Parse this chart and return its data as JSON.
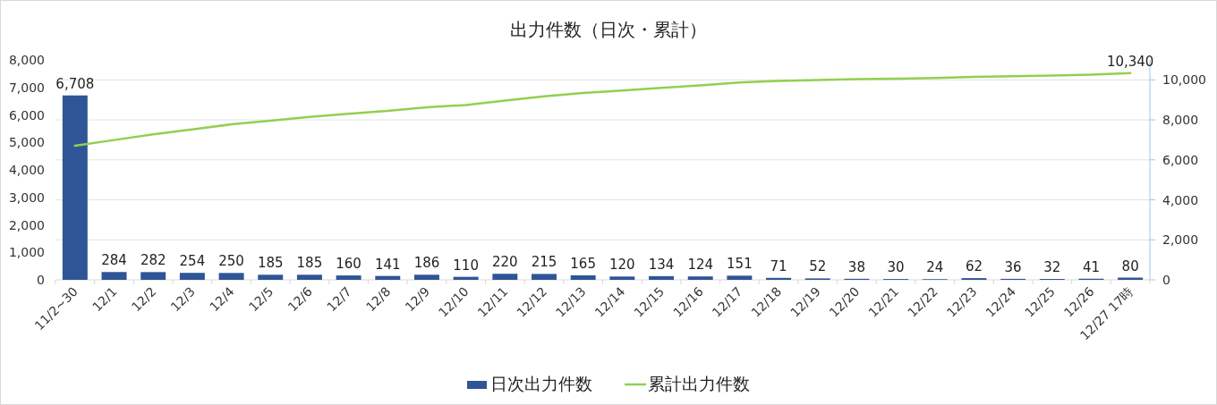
{
  "chart_data": {
    "type": "bar",
    "title": "出力件数（日次・累計）",
    "categories": [
      "11/2~30",
      "12/1",
      "12/2",
      "12/3",
      "12/4",
      "12/5",
      "12/6",
      "12/7",
      "12/8",
      "12/9",
      "12/10",
      "12/11",
      "12/12",
      "12/13",
      "12/14",
      "12/15",
      "12/16",
      "12/17",
      "12/18",
      "12/19",
      "12/20",
      "12/21",
      "12/22",
      "12/23",
      "12/24",
      "12/25",
      "12/26",
      "12/27 17時"
    ],
    "series": [
      {
        "name": "日次出力件数",
        "color": "#2f5597",
        "values": [
          6708,
          284,
          282,
          254,
          250,
          185,
          185,
          160,
          141,
          186,
          110,
          220,
          215,
          165,
          120,
          134,
          124,
          151,
          71,
          52,
          38,
          30,
          24,
          62,
          36,
          32,
          41,
          80
        ],
        "value_labels": [
          "6,708",
          "284",
          "282",
          "254",
          "250",
          "185",
          "185",
          "160",
          "141",
          "186",
          "110",
          "220",
          "215",
          "165",
          "120",
          "134",
          "124",
          "151",
          "71",
          "52",
          "38",
          "30",
          "24",
          "62",
          "36",
          "32",
          "41",
          "80"
        ]
      },
      {
        "name": "累計出力件数",
        "type": "line",
        "axis": "y2",
        "color": "#92d050",
        "values": [
          6708,
          6992,
          7274,
          7528,
          7778,
          7963,
          8148,
          8308,
          8449,
          8635,
          8745,
          8965,
          9180,
          9345,
          9465,
          9599,
          9723,
          9874,
          9945,
          9997,
          10035,
          10065,
          10089,
          10151,
          10187,
          10219,
          10260,
          10340
        ],
        "value_labels": [
          null,
          null,
          null,
          null,
          null,
          null,
          null,
          null,
          null,
          null,
          null,
          null,
          null,
          null,
          null,
          null,
          null,
          null,
          null,
          null,
          null,
          null,
          null,
          null,
          null,
          null,
          null,
          "10,340"
        ]
      }
    ],
    "ylim": [
      0,
      8000
    ],
    "yticks": [
      {
        "value": 0,
        "label": "0"
      },
      {
        "value": 1000,
        "label": "1,000"
      },
      {
        "value": 2000,
        "label": "2,000"
      },
      {
        "value": 3000,
        "label": "3,000"
      },
      {
        "value": 4000,
        "label": "4,000"
      },
      {
        "value": 5000,
        "label": "5,000"
      },
      {
        "value": 6000,
        "label": "6,000"
      },
      {
        "value": 7000,
        "label": "7,000"
      },
      {
        "value": 8000,
        "label": "8,000"
      }
    ],
    "y2lim": [
      0,
      11000
    ],
    "y2ticks": [
      {
        "value": 0,
        "label": "0"
      },
      {
        "value": 2000,
        "label": "2,000"
      },
      {
        "value": 4000,
        "label": "4,000"
      },
      {
        "value": 6000,
        "label": "6,000"
      },
      {
        "value": 8000,
        "label": "8,000"
      },
      {
        "value": 10000,
        "label": "10,000"
      }
    ],
    "grid": "y",
    "legend": "bottom"
  }
}
